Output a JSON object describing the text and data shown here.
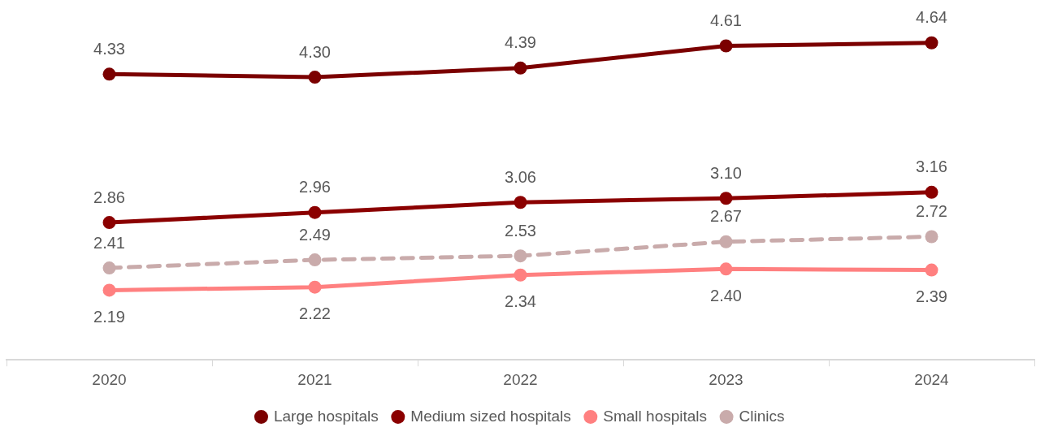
{
  "chart_data": {
    "type": "line",
    "categories": [
      "2020",
      "2021",
      "2022",
      "2023",
      "2024"
    ],
    "series": [
      {
        "name": "Large hospitals",
        "color": "#7b0000",
        "values": [
          4.33,
          4.3,
          4.39,
          4.61,
          4.64
        ],
        "value_labels": [
          "4.33",
          "4.30",
          "4.39",
          "4.61",
          "4.64"
        ]
      },
      {
        "name": "Medium sized hospitals",
        "color": "#8b0000",
        "values": [
          2.86,
          2.96,
          3.06,
          3.1,
          3.16
        ],
        "value_labels": [
          "2.86",
          "2.96",
          "3.06",
          "3.10",
          "3.16"
        ]
      },
      {
        "name": "Small hospitals",
        "color": "#ff8080",
        "values": [
          2.19,
          2.22,
          2.34,
          2.4,
          2.39
        ],
        "value_labels": [
          "2.19",
          "2.22",
          "2.34",
          "2.40",
          "2.39"
        ]
      },
      {
        "name": "Clinics",
        "color": "#c9abab",
        "line_style": "dashed",
        "values": [
          2.41,
          2.49,
          2.53,
          2.67,
          2.72
        ],
        "value_labels": [
          "2.41",
          "2.49",
          "2.53",
          "2.67",
          "2.72"
        ]
      }
    ],
    "tick_labels": "x",
    "marker": "circle",
    "grid": false,
    "legend": "bottom"
  }
}
